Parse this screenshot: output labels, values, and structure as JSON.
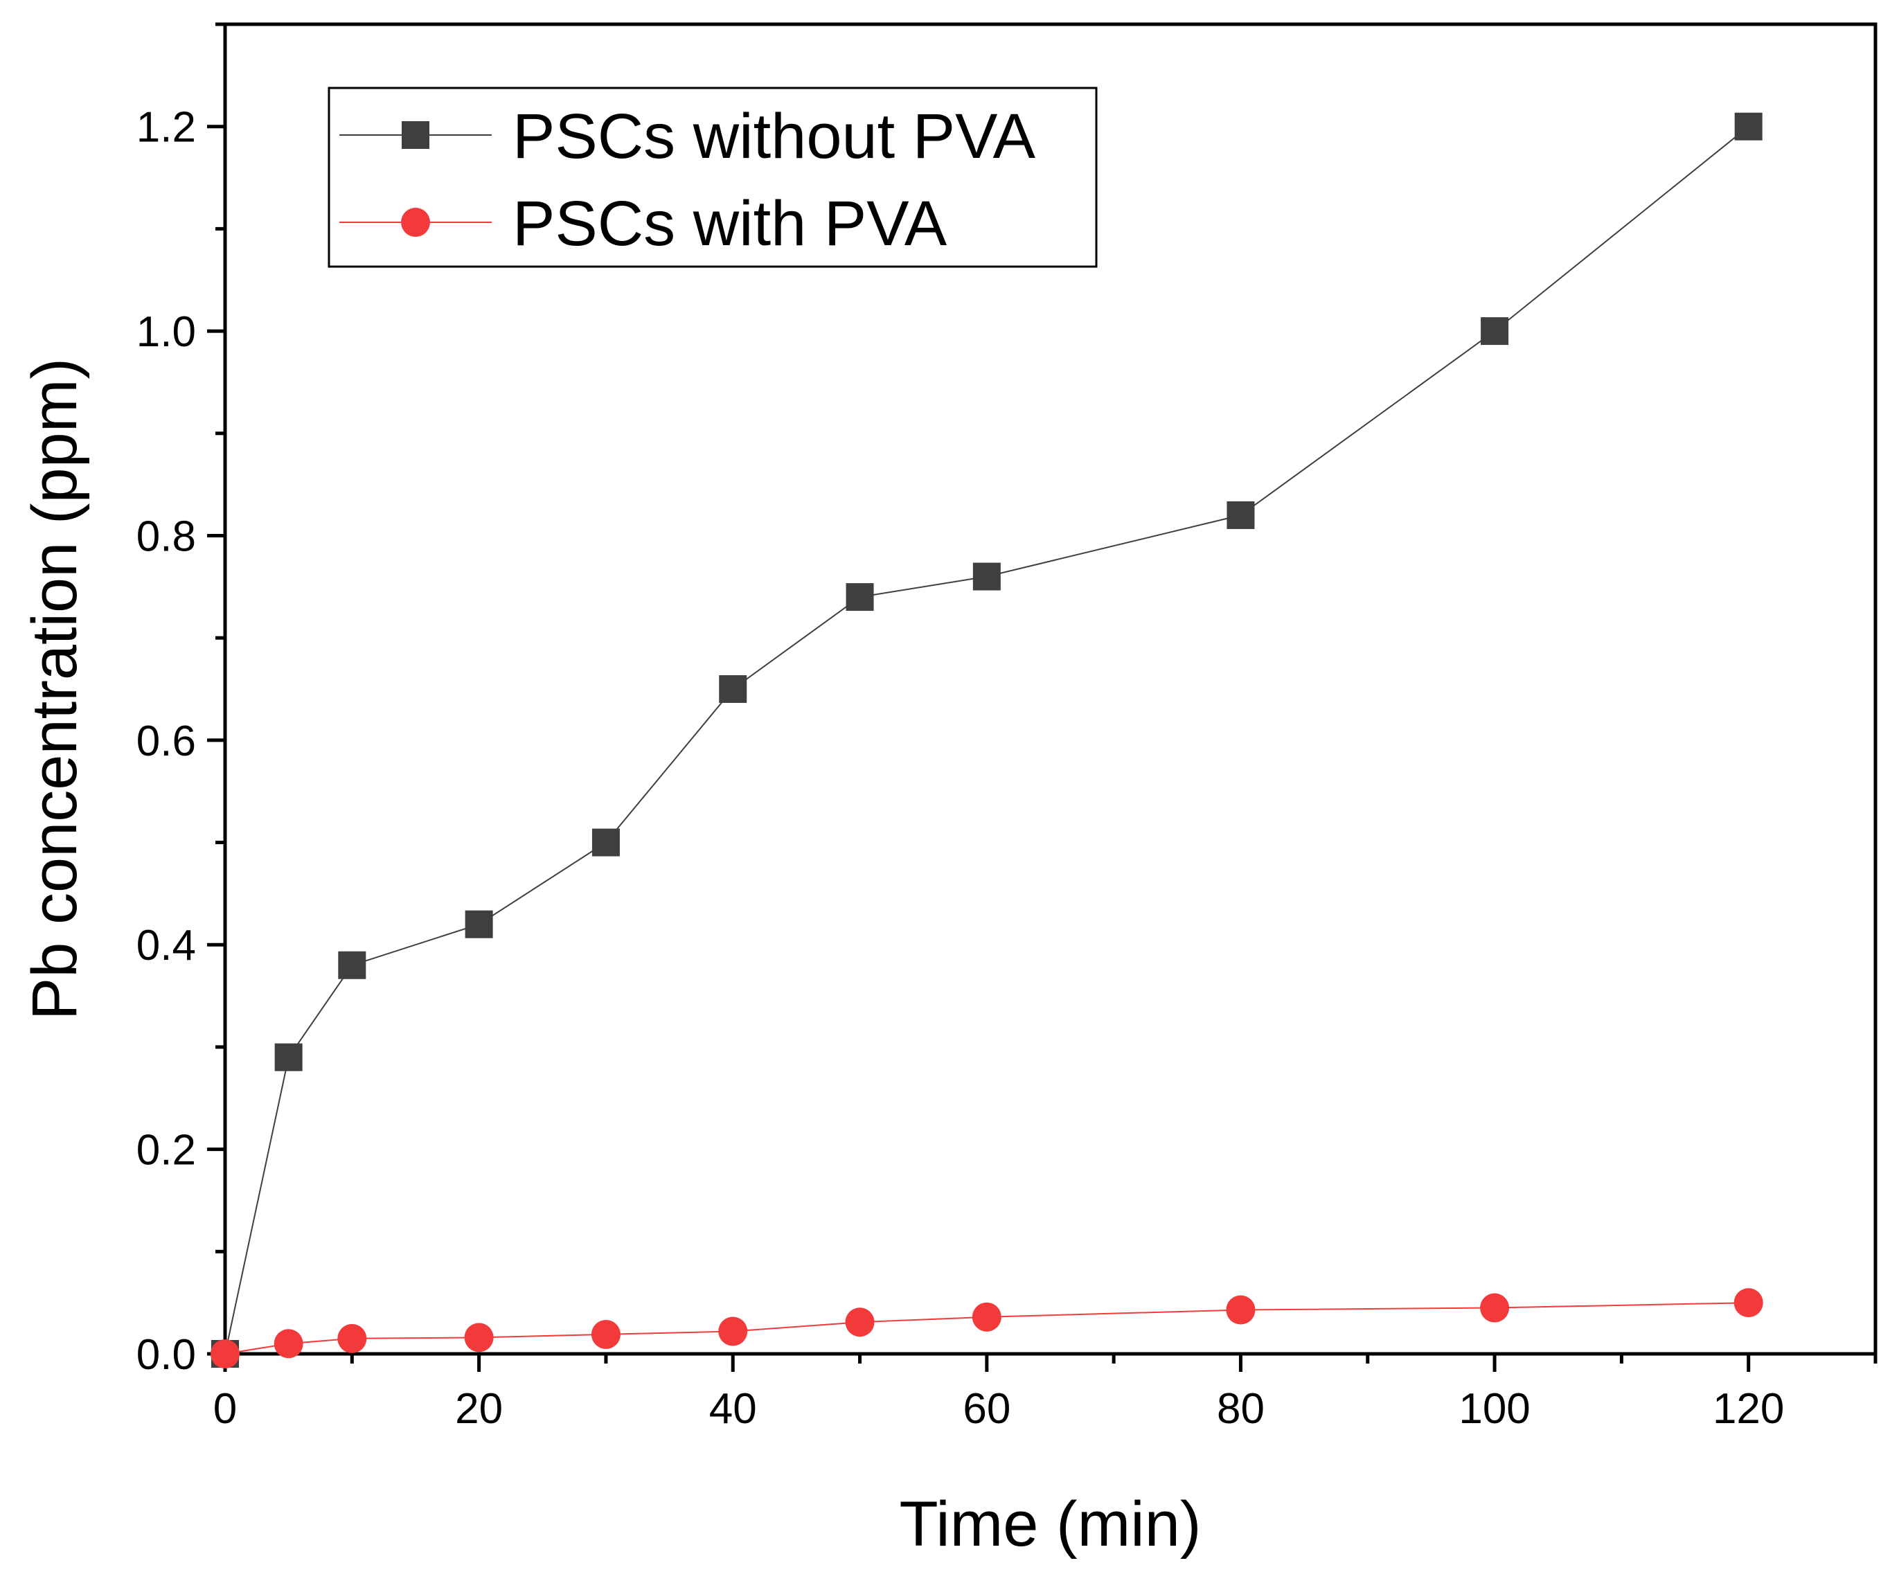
{
  "chart_data": {
    "type": "line",
    "title": "",
    "xlabel": "Time (min)",
    "ylabel": "Pb concentration (ppm)",
    "xlim": [
      0,
      130
    ],
    "ylim": [
      0,
      1.3
    ],
    "x_ticks": [
      0,
      20,
      40,
      60,
      80,
      100,
      120
    ],
    "x_tick_labels": [
      "0",
      "20",
      "40",
      "60",
      "80",
      "100",
      "120"
    ],
    "y_ticks": [
      0.0,
      0.2,
      0.4,
      0.6,
      0.8,
      1.0,
      1.2
    ],
    "y_tick_labels": [
      "0.0",
      "0.2",
      "0.4",
      "0.6",
      "0.8",
      "1.0",
      "1.2"
    ],
    "grid": false,
    "legend_position": "top-left",
    "series": [
      {
        "name": "PSCs without PVA",
        "marker": "square",
        "color": "#3f3f3f",
        "x": [
          0,
          5,
          10,
          20,
          30,
          40,
          50,
          60,
          80,
          100,
          120
        ],
        "values": [
          0.0,
          0.29,
          0.38,
          0.42,
          0.5,
          0.65,
          0.74,
          0.76,
          0.82,
          1.0,
          1.2
        ]
      },
      {
        "name": "PSCs with PVA",
        "marker": "circle",
        "color": "#f23a3a",
        "x": [
          0,
          5,
          10,
          20,
          30,
          40,
          50,
          60,
          80,
          100,
          120
        ],
        "values": [
          0.0,
          0.01,
          0.015,
          0.016,
          0.019,
          0.022,
          0.031,
          0.036,
          0.043,
          0.045,
          0.05
        ]
      }
    ]
  }
}
